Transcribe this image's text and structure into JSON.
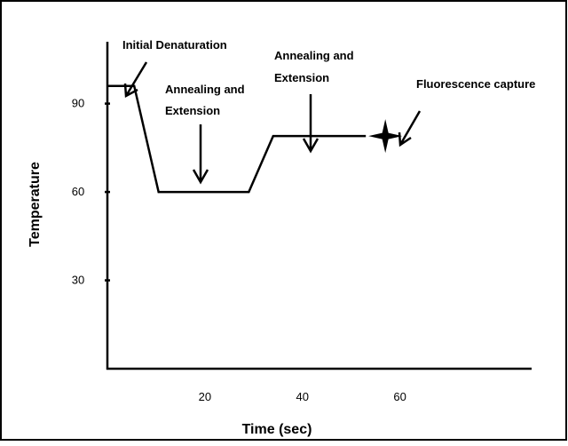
{
  "chart_data": {
    "type": "line",
    "title": "",
    "xlabel": "Time (sec)",
    "ylabel": "Temperature",
    "x_ticks": [
      20,
      40,
      60
    ],
    "y_ticks": [
      30,
      60,
      90
    ],
    "xlim": [
      0,
      87
    ],
    "ylim": [
      0,
      111
    ],
    "grid": false,
    "series": [
      {
        "points": [
          {
            "x": 0,
            "y": 96
          },
          {
            "x": 5.5,
            "y": 96
          },
          {
            "x": 10.5,
            "y": 60
          },
          {
            "x": 29,
            "y": 60
          },
          {
            "x": 34,
            "y": 79
          },
          {
            "x": 53,
            "y": 79
          }
        ]
      }
    ],
    "marker": {
      "x": 57,
      "y": 79,
      "shape": "four-point-star"
    },
    "annotations": [
      {
        "id": "initial-denaturation",
        "lines": [
          "Initial Denaturation"
        ]
      },
      {
        "id": "annealing-1",
        "lines": [
          "Annealing and",
          "Extension"
        ]
      },
      {
        "id": "annealing-2",
        "lines": [
          "Annealing and",
          "Extension"
        ]
      },
      {
        "id": "fluorescence",
        "lines": [
          "Fluorescence capture"
        ]
      }
    ]
  }
}
